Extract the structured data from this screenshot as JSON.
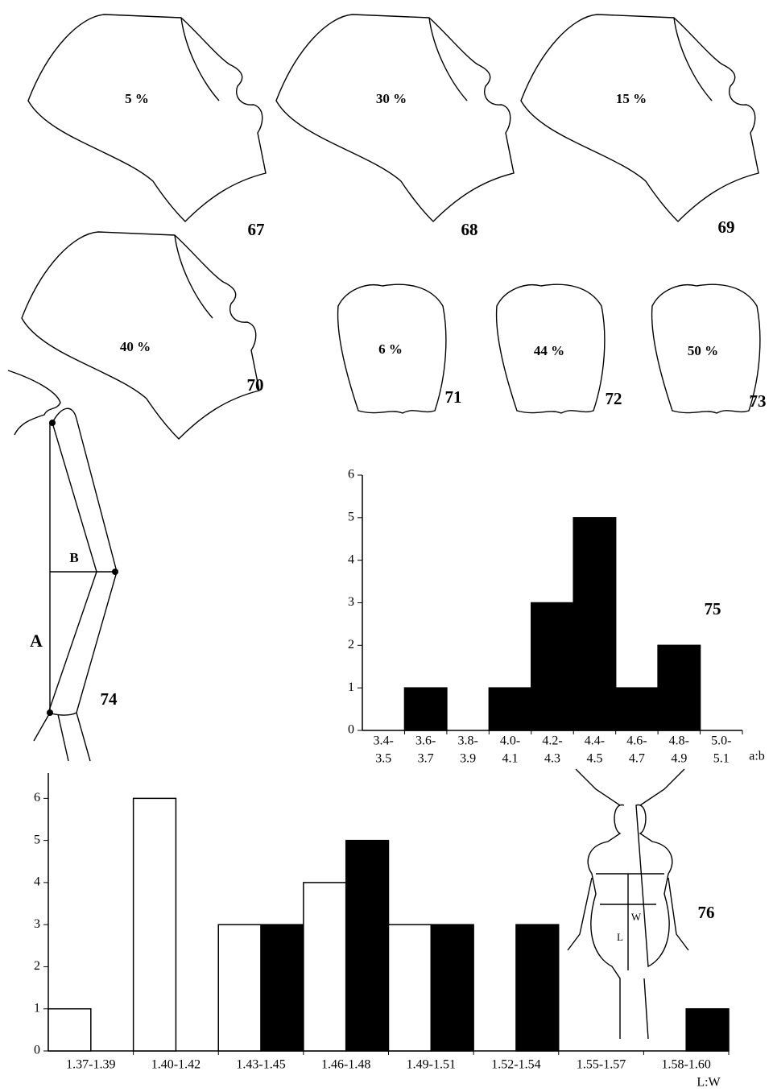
{
  "figures": {
    "shapes": [
      {
        "label": "5 %",
        "number": "67"
      },
      {
        "label": "30 %",
        "number": "68"
      },
      {
        "label": "15 %",
        "number": "69"
      },
      {
        "label": "40 %",
        "number": "70"
      }
    ],
    "ovals": [
      {
        "label": "6 %",
        "number": "71"
      },
      {
        "label": "44 %",
        "number": "72"
      },
      {
        "label": "50 %",
        "number": "73"
      }
    ],
    "leg": {
      "a": "A",
      "b": "B",
      "number": "74"
    },
    "beetle": {
      "w": "W",
      "l": "L"
    }
  },
  "chart_data": [
    {
      "type": "bar",
      "figure_number": "75",
      "x_label": "a:b",
      "categories": [
        [
          "3.4-",
          "3.5"
        ],
        [
          "3.6-",
          "3.7"
        ],
        [
          "3.8-",
          "3.9"
        ],
        [
          "4.0-",
          "4.1"
        ],
        [
          "4.2-",
          "4.3"
        ],
        [
          "4.4-",
          "4.5"
        ],
        [
          "4.6-",
          "4.7"
        ],
        [
          "4.8-",
          "4.9"
        ],
        [
          "5.0-",
          "5.1"
        ]
      ],
      "series": [
        {
          "color": "#000000",
          "values": [
            0,
            1,
            0,
            1,
            3,
            5,
            1,
            2,
            0
          ]
        }
      ],
      "ylim": [
        0,
        6
      ],
      "yticks": [
        0,
        1,
        2,
        3,
        4,
        5,
        6
      ]
    },
    {
      "type": "bar",
      "figure_number": "76",
      "x_label": "L:W",
      "categories": [
        "1.37-1.39",
        "1.40-1.42",
        "1.43-1.45",
        "1.46-1.48",
        "1.49-1.51",
        "1.52-1.54",
        "1.55-1.57",
        "1.58-1.60"
      ],
      "series": [
        {
          "color": "#ffffff",
          "values": [
            1,
            6,
            3,
            4,
            3,
            0,
            0,
            0
          ]
        },
        {
          "color": "#000000",
          "values": [
            0,
            0,
            3,
            5,
            3,
            3,
            0,
            1
          ]
        }
      ],
      "ylim": [
        0,
        6.6
      ],
      "yticks": [
        0,
        1,
        2,
        3,
        4,
        5,
        6
      ]
    }
  ]
}
